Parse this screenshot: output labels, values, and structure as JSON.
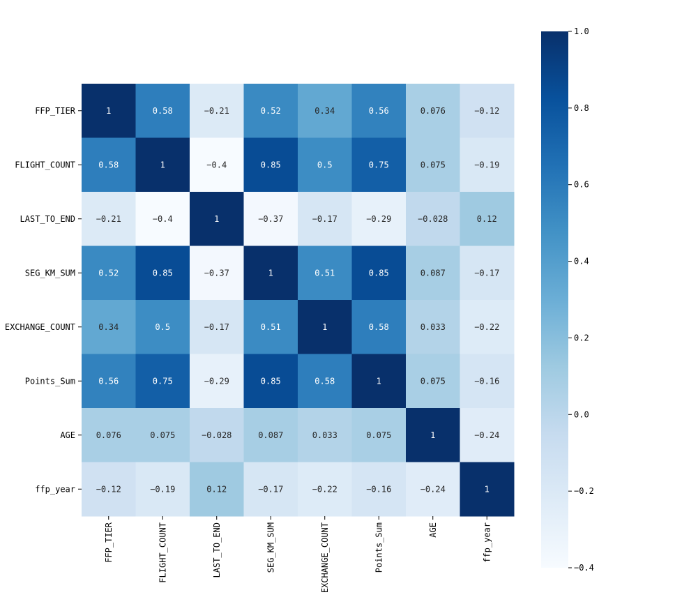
{
  "chart_data": {
    "type": "heatmap",
    "title": "",
    "xlabel": "",
    "ylabel": "",
    "labels": [
      "FFP_TIER",
      "FLIGHT_COUNT",
      "LAST_TO_END",
      "SEG_KM_SUM",
      "EXCHANGE_COUNT",
      "Points_Sum",
      "AGE",
      "ffp_year"
    ],
    "values": [
      [
        1,
        0.58,
        -0.21,
        0.52,
        0.34,
        0.56,
        0.076,
        -0.12
      ],
      [
        0.58,
        1,
        -0.4,
        0.85,
        0.5,
        0.75,
        0.075,
        -0.19
      ],
      [
        -0.21,
        -0.4,
        1,
        -0.37,
        -0.17,
        -0.29,
        -0.028,
        0.12
      ],
      [
        0.52,
        0.85,
        -0.37,
        1,
        0.51,
        0.85,
        0.087,
        -0.17
      ],
      [
        0.34,
        0.5,
        -0.17,
        0.51,
        1,
        0.58,
        0.033,
        -0.22
      ],
      [
        0.56,
        0.75,
        -0.29,
        0.85,
        0.58,
        1,
        0.075,
        -0.16
      ],
      [
        0.076,
        0.075,
        -0.028,
        0.087,
        0.033,
        0.075,
        1,
        -0.24
      ],
      [
        -0.12,
        -0.19,
        0.12,
        -0.17,
        -0.22,
        -0.16,
        -0.24,
        1
      ]
    ],
    "annotations": [
      [
        "1",
        "0.58",
        "−0.21",
        "0.52",
        "0.34",
        "0.56",
        "0.076",
        "−0.12"
      ],
      [
        "0.58",
        "1",
        "−0.4",
        "0.85",
        "0.5",
        "0.75",
        "0.075",
        "−0.19"
      ],
      [
        "−0.21",
        "−0.4",
        "1",
        "−0.37",
        "−0.17",
        "−0.29",
        "−0.028",
        "0.12"
      ],
      [
        "0.52",
        "0.85",
        "−0.37",
        "1",
        "0.51",
        "0.85",
        "0.087",
        "−0.17"
      ],
      [
        "0.34",
        "0.5",
        "−0.17",
        "0.51",
        "1",
        "0.58",
        "0.033",
        "−0.22"
      ],
      [
        "0.56",
        "0.75",
        "−0.29",
        "0.85",
        "0.58",
        "1",
        "0.075",
        "−0.16"
      ],
      [
        "0.076",
        "0.075",
        "−0.028",
        "0.087",
        "0.033",
        "0.075",
        "1",
        "−0.24"
      ],
      [
        "−0.12",
        "−0.19",
        "0.12",
        "−0.17",
        "−0.22",
        "−0.16",
        "−0.24",
        "1"
      ]
    ],
    "colormap": "Blues",
    "colorbar": {
      "range": [
        -0.4,
        1.0
      ],
      "ticks": [
        1.0,
        0.8,
        0.6,
        0.4,
        0.2,
        0.0,
        -0.2,
        -0.4
      ],
      "tick_labels": [
        "1.0",
        "0.8",
        "0.6",
        "0.4",
        "0.2",
        "0.0",
        "−0.2",
        "−0.4"
      ]
    },
    "colors": [
      "#f7fbff",
      "#deebf7",
      "#c6dbef",
      "#9ecae1",
      "#6baed6",
      "#4292c6",
      "#2171b5",
      "#08519c",
      "#08306b"
    ]
  }
}
